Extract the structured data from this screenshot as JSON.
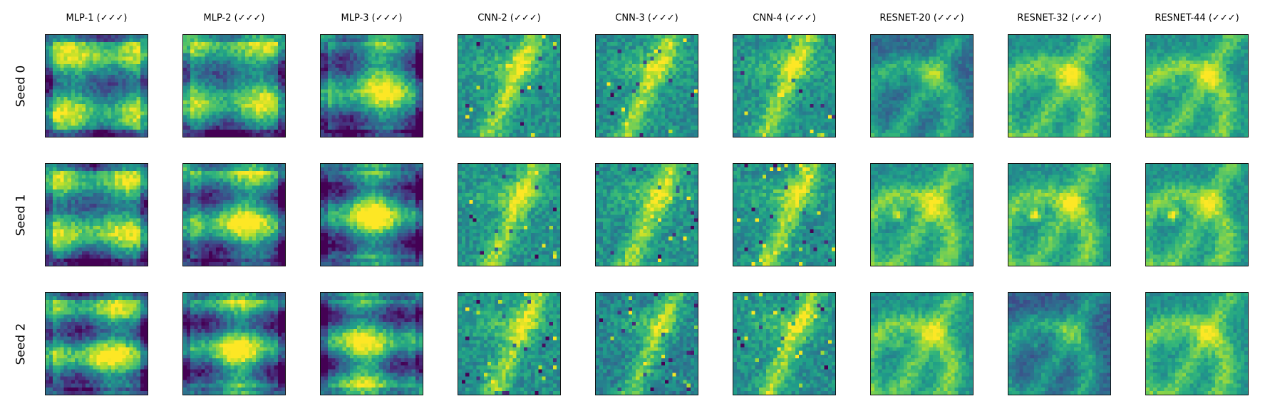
{
  "figure": {
    "colormap": "viridis",
    "grid_size": 28
  },
  "chart_data": {
    "type": "heatmap",
    "columns": [
      "MLP-1 (✓✓✓)",
      "MLP-2 (✓✓✓)",
      "MLP-3 (✓✓✓)",
      "CNN-2 (✓✓✓)",
      "CNN-3 (✓✓✓)",
      "CNN-4 (✓✓✓)",
      "RESNET-20 (✓✓✓)",
      "RESNET-32 (✓✓✓)",
      "RESNET-44 (✓✓✓)"
    ],
    "rows": [
      "Seed 0",
      "Seed 1",
      "Seed 2"
    ]
  }
}
